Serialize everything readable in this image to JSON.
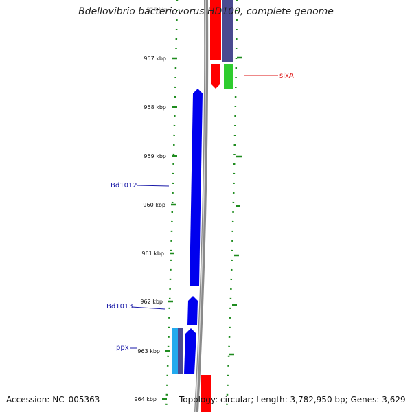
{
  "header": {
    "title": "Bdellovibrio bacteriovorus HD100, complete genome"
  },
  "footer": {
    "accession": "Accession: NC_005363",
    "summary": "Topology: circular; Length: 3,782,950 bp; Genes: 3,629"
  },
  "ruler": {
    "top_partial_label": "956 kbp",
    "ticks": [
      "957 kbp",
      "958 kbp",
      "959 kbp",
      "960 kbp",
      "961 kbp",
      "962 kbp",
      "963 kbp",
      "964 kbp"
    ]
  },
  "gene_labels": {
    "sixA": "sixA",
    "bd1012": "Bd1012",
    "bd1013": "Bd1013",
    "ppx": "ppx"
  },
  "colors": {
    "forward_strand": "#0000ee",
    "reverse_strand": "#ff0000",
    "backbone": "#8a8a8a",
    "ruler": "#1f8c1f",
    "track_purple": "#4a4a90",
    "track_green": "#2ecc2e",
    "track_cyan": "#22aaee",
    "label_blue": "#1a1aa8",
    "label_red": "#dd1111"
  }
}
